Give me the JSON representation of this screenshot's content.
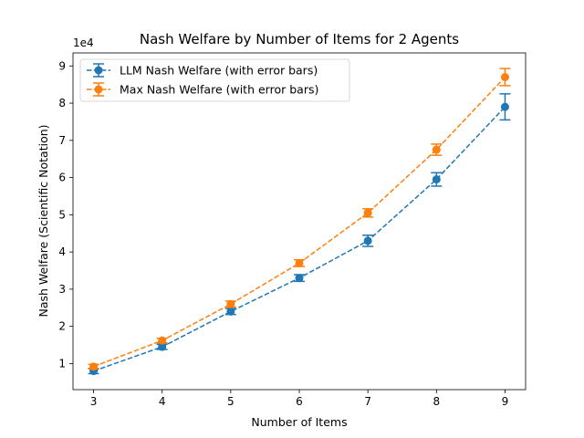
{
  "chart_data": {
    "type": "line",
    "title": "Nash Welfare by Number of Items for 2 Agents",
    "xlabel": "Number of Items",
    "ylabel": "Nash Welfare (Scientific Notation)",
    "y_offset_label": "1e4",
    "x": [
      3,
      4,
      5,
      6,
      7,
      8,
      9
    ],
    "xlim": [
      2.7,
      9.3
    ],
    "ylim": [
      3000,
      93500
    ],
    "x_ticks": [
      3,
      4,
      5,
      6,
      7,
      8,
      9
    ],
    "y_ticks": [
      10000,
      20000,
      30000,
      40000,
      50000,
      60000,
      70000,
      80000,
      90000
    ],
    "y_tick_labels": [
      "1",
      "2",
      "3",
      "4",
      "5",
      "6",
      "7",
      "8",
      "9"
    ],
    "grid": false,
    "legend_position": "top-left",
    "series": [
      {
        "name": "LLM Nash Welfare (with error bars)",
        "color": "#1f77b4",
        "line_style": "dashed",
        "marker": "circle",
        "values": [
          8000,
          14500,
          24000,
          33000,
          43000,
          59500,
          79000
        ],
        "errors": [
          700,
          700,
          800,
          900,
          1500,
          1800,
          3500
        ]
      },
      {
        "name": "Max Nash Welfare (with error bars)",
        "color": "#ff7f0e",
        "line_style": "dashed",
        "marker": "circle",
        "values": [
          9200,
          16200,
          26000,
          37000,
          50500,
          67500,
          87000
        ],
        "errors": [
          600,
          600,
          800,
          900,
          1100,
          1500,
          2300
        ]
      }
    ]
  }
}
